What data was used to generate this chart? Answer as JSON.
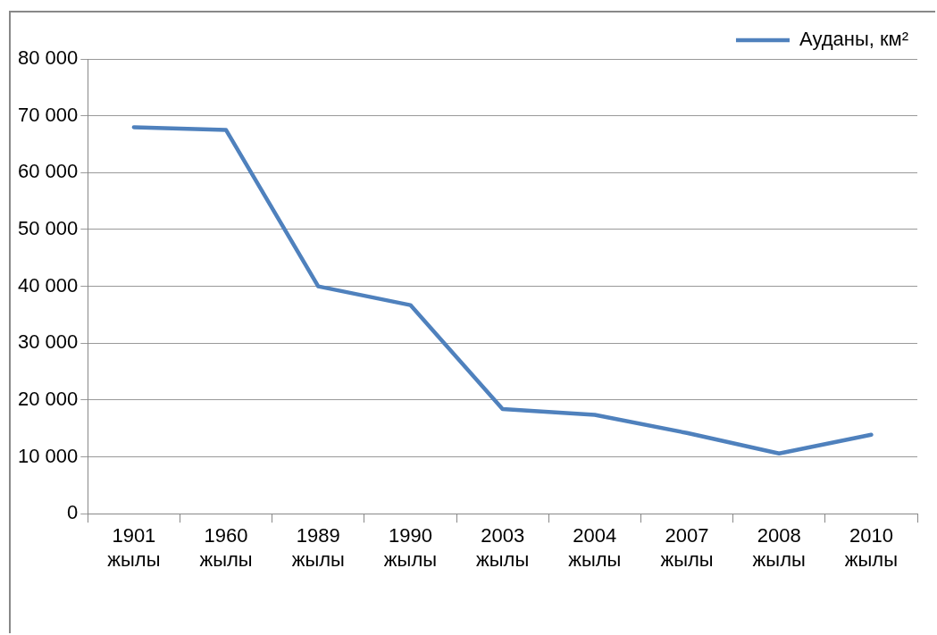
{
  "chart_data": {
    "type": "line",
    "categories": [
      "1901 жылы",
      "1960 жылы",
      "1989 жылы",
      "1990 жылы",
      "2003 жылы",
      "2004 жылы",
      "2007 жылы",
      "2008 жылы",
      "2010 жылы"
    ],
    "series": [
      {
        "name": "Ауданы, км²",
        "color": "#4f81bd",
        "values": [
          68000,
          67500,
          40000,
          36700,
          18400,
          17400,
          14200,
          10600,
          13900
        ]
      }
    ],
    "ylim": [
      0,
      80000
    ],
    "yticks": [
      {
        "value": 0,
        "label": "0"
      },
      {
        "value": 10000,
        "label": "10 000"
      },
      {
        "value": 20000,
        "label": "20 000"
      },
      {
        "value": 30000,
        "label": "30 000"
      },
      {
        "value": 40000,
        "label": "40 000"
      },
      {
        "value": 50000,
        "label": "50 000"
      },
      {
        "value": 60000,
        "label": "60 000"
      },
      {
        "value": 70000,
        "label": "70 000"
      },
      {
        "value": 80000,
        "label": "80 000"
      }
    ],
    "grid": "y",
    "legend": "top right",
    "marker": "none",
    "line_style": "solid"
  }
}
